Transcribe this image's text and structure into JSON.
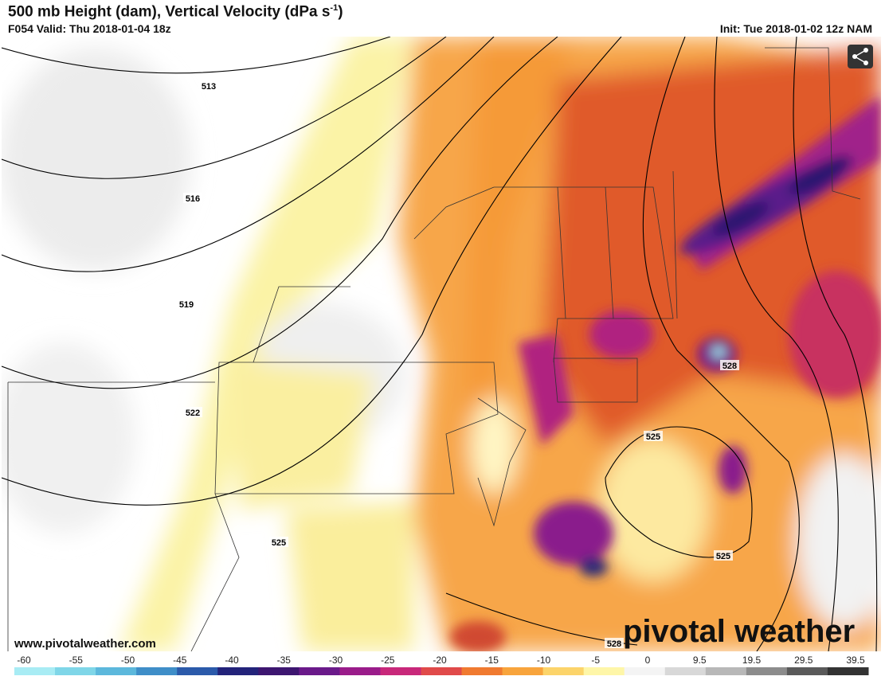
{
  "header": {
    "title": "500 mb Height (dam), Vertical Velocity (dPa s",
    "title_superscript": "-1",
    "title_end": ")",
    "valid": "F054 Valid: Thu 2018-01-04 18z",
    "init": "Init: Tue 2018-01-02 12z NAM"
  },
  "map": {
    "contour_labels": [
      "513",
      "516",
      "519",
      "522",
      "525",
      "525",
      "525",
      "528",
      "528"
    ],
    "website": "www.pivotalweather.com",
    "watermark": "pivotal weather"
  },
  "colorbar": {
    "ticks": [
      "-60",
      "-55",
      "-50",
      "-45",
      "-40",
      "-35",
      "-30",
      "-25",
      "-20",
      "-15",
      "-10",
      "-5",
      "0",
      "9.5",
      "19.5",
      "29.5",
      "39.5"
    ]
  }
}
